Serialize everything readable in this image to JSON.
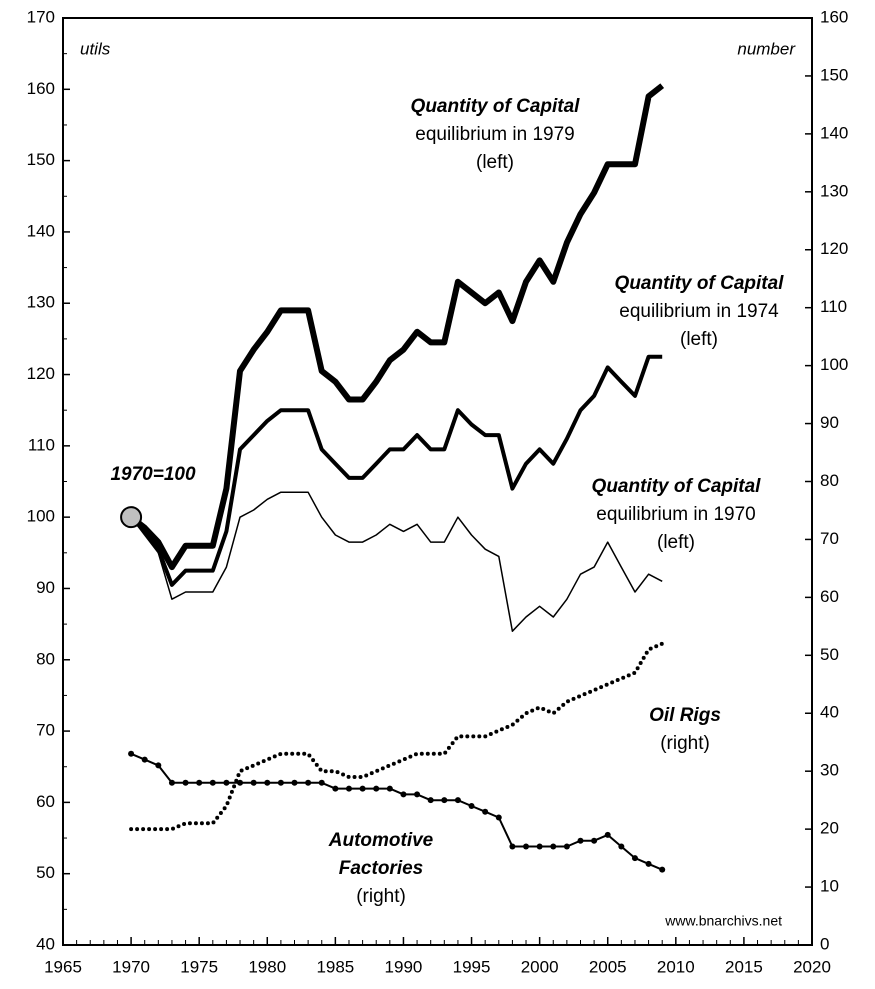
{
  "chart_data": {
    "type": "line",
    "x": [
      1970,
      1971,
      1972,
      1973,
      1974,
      1975,
      1976,
      1977,
      1978,
      1979,
      1980,
      1981,
      1982,
      1983,
      1984,
      1985,
      1986,
      1987,
      1988,
      1989,
      1990,
      1991,
      1992,
      1993,
      1994,
      1995,
      1996,
      1997,
      1998,
      1999,
      2000,
      2001,
      2002,
      2003,
      2004,
      2005,
      2006,
      2007,
      2008,
      2009
    ],
    "xlim": [
      1965,
      2020
    ],
    "xticks": [
      1965,
      1970,
      1975,
      1980,
      1985,
      1990,
      1995,
      2000,
      2005,
      2010,
      2015,
      2020
    ],
    "ylim": [
      40,
      170
    ],
    "yticks": [
      40,
      50,
      60,
      70,
      80,
      90,
      100,
      110,
      120,
      130,
      140,
      150,
      160,
      170
    ],
    "y2lim": [
      0,
      160
    ],
    "y2ticks": [
      0,
      10,
      20,
      30,
      40,
      50,
      60,
      70,
      80,
      90,
      100,
      110,
      120,
      130,
      140,
      150,
      160
    ],
    "y_unit_label": "utils",
    "y2_unit_label": "number",
    "source": "www.bnarchivs.net",
    "series": [
      {
        "color": "#000000",
        "linewidth": 6,
        "style": "solid",
        "axis": "y",
        "values": [
          100,
          98.5,
          96.5,
          93,
          96,
          96,
          96,
          104,
          120.5,
          123.5,
          126,
          129,
          129,
          129,
          120.5,
          119,
          116.5,
          116.5,
          119,
          122,
          123.5,
          126,
          124.5,
          124.5,
          133,
          131.5,
          130,
          131.5,
          127.5,
          133,
          136,
          133,
          138.5,
          142.5,
          145.5,
          149.5,
          149.5,
          149.5,
          159,
          160.5
        ]
      },
      {
        "color": "#000000",
        "linewidth": 4,
        "style": "solid",
        "axis": "y",
        "values": [
          100,
          98,
          95.5,
          90.5,
          92.5,
          92.5,
          92.5,
          98,
          109.5,
          111.5,
          113.5,
          115,
          115,
          115,
          109.5,
          107.5,
          105.5,
          105.5,
          107.5,
          109.5,
          109.5,
          111.5,
          109.5,
          109.5,
          115,
          113,
          111.5,
          111.5,
          104,
          107.5,
          109.5,
          107.5,
          111,
          115,
          117,
          121,
          119,
          117,
          122.5,
          122.5
        ]
      },
      {
        "color": "#000000",
        "linewidth": 1.5,
        "style": "solid",
        "axis": "y",
        "values": [
          100,
          97.5,
          95,
          88.5,
          89.5,
          89.5,
          89.5,
          93,
          100,
          101,
          102.5,
          103.5,
          103.5,
          103.5,
          100,
          97.5,
          96.5,
          96.5,
          97.5,
          99,
          98,
          99,
          96.5,
          96.5,
          100,
          97.5,
          95.5,
          94.5,
          84,
          86,
          87.5,
          86,
          88.5,
          92,
          93,
          96.5,
          93,
          89.5,
          92,
          91
        ]
      },
      {
        "color": "#000000",
        "linewidth": 4,
        "style": "dotted",
        "axis": "y2",
        "values": [
          20,
          20,
          20,
          20,
          21,
          21,
          21,
          24,
          30,
          31,
          32,
          33,
          33,
          33,
          30,
          30,
          29,
          29,
          30,
          31,
          32,
          33,
          33,
          33,
          36,
          36,
          36,
          37,
          38,
          40,
          41,
          40,
          42,
          43,
          44,
          45,
          46,
          47,
          51,
          52
        ]
      },
      {
        "color": "#000000",
        "linewidth": 2,
        "style": "dots",
        "axis": "y2",
        "values": [
          33,
          32,
          31,
          28,
          28,
          28,
          28,
          28,
          28,
          28,
          28,
          28,
          28,
          28,
          28,
          27,
          27,
          27,
          27,
          27,
          26,
          26,
          25,
          25,
          25,
          24,
          23,
          22,
          17,
          17,
          17,
          17,
          17,
          18,
          18,
          19,
          17,
          15,
          14,
          13
        ]
      }
    ],
    "base_marker": {
      "x": 1970,
      "y": 100,
      "color": "#c0c0c0"
    },
    "annotations": [
      {
        "lines": [
          "Quantity of Capital",
          "equilibrium in 1979",
          "(left)"
        ]
      },
      {
        "lines": [
          "Quantity of Capital",
          "equilibrium in 1974",
          "(left)"
        ]
      },
      {
        "lines": [
          "Quantity of Capital",
          "equilibrium in 1970",
          "(left)"
        ]
      },
      {
        "lines": [
          "1970=100"
        ]
      },
      {
        "lines": [
          "Oil Rigs",
          "(right)"
        ]
      },
      {
        "lines": [
          "Automotive",
          "Factories",
          "(right)"
        ]
      }
    ]
  }
}
